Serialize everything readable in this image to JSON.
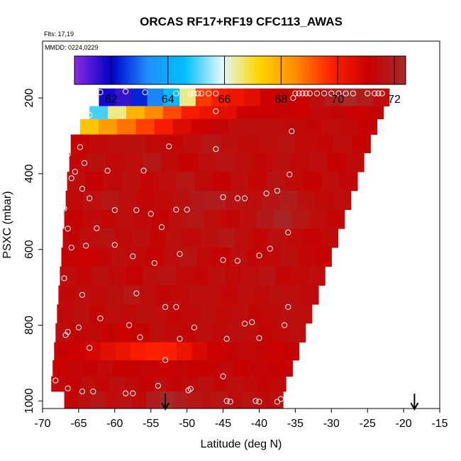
{
  "chart_data": {
    "type": "heatmap",
    "title": "ORCAS RF17+RF19 CFC113_AWAS",
    "flights_note": "Flts: 17,19",
    "date_note": "MMDD: 0224,0229",
    "xlabel": "Latitude (deg N)",
    "ylabel": "PSXC (mbar)",
    "xlim": [
      -70,
      -15
    ],
    "ylim": [
      1020,
      50
    ],
    "x_ticks": [
      -70,
      -65,
      -60,
      -55,
      -50,
      -45,
      -40,
      -35,
      -30,
      -25,
      -20,
      -15
    ],
    "y_ticks": [
      200,
      400,
      600,
      800,
      1000
    ],
    "colorbar": {
      "range": [
        60.7,
        72.4
      ],
      "ticks": [
        62,
        64,
        66,
        68,
        70,
        72
      ],
      "colors": [
        "#8a2be2",
        "#0000c8",
        "#1e90ff",
        "#00bfff",
        "#e0f8ff",
        "#ffd700",
        "#ff8c00",
        "#ff2000",
        "#c80000",
        "#a52a2a"
      ]
    },
    "layers": [
      {
        "pressure": 185,
        "lat_start": -62.2,
        "lat_end": -22.0,
        "values": [
          61.8,
          61.5,
          62.3,
          63.2,
          64.5,
          66.5,
          69.5,
          70.0,
          70.2,
          70.5,
          71.0,
          71.2,
          71.0,
          71.5,
          72.0,
          72.3,
          72.0,
          71.5
        ]
      },
      {
        "pressure": 205,
        "lat_start": -62.2,
        "lat_end": -22.0,
        "values": [
          61.8,
          61.5,
          62.3,
          63.2,
          64.5,
          66.5,
          69.5,
          70.0,
          70.2,
          70.5,
          71.0,
          71.2,
          71.0,
          71.5,
          72.0,
          72.3,
          72.0,
          71.5
        ]
      },
      {
        "pressure": 238,
        "lat_start": -63.5,
        "lat_end": -22.8,
        "values": [
          65.0,
          66.5,
          67.8,
          68.5,
          69.3,
          70.0,
          70.3,
          70.5,
          71.0,
          71.0,
          71.2,
          71.0,
          71.4,
          71.3,
          71.0,
          71.2
        ]
      },
      {
        "pressure": 273,
        "lat_start": -64.8,
        "lat_end": -23.7,
        "values": [
          67.5,
          68.2,
          68.8,
          69.4,
          70.0,
          70.6,
          71.0,
          71.3,
          71.5,
          71.6,
          71.5,
          71.4,
          71.3,
          71.5,
          71.4,
          71.2
        ]
      },
      {
        "pressure": 320,
        "lat_start": -66.1,
        "lat_end": -24.6,
        "values": [
          71.2,
          71.4,
          71.5,
          71.6,
          71.4,
          71.3,
          71.5,
          71.8,
          71.6,
          71.4,
          71.5,
          71.7,
          71.4,
          71.3,
          71.5,
          71.2
        ]
      },
      {
        "pressure": 370,
        "lat_start": -66.3,
        "lat_end": -25.5,
        "values": [
          71.3,
          71.6,
          71.4,
          71.5,
          71.8,
          71.4,
          71.2,
          71.5,
          71.7,
          71.5,
          71.3,
          71.6,
          71.4,
          71.5,
          71.2,
          71.4
        ]
      },
      {
        "pressure": 420,
        "lat_start": -66.6,
        "lat_end": -26.4,
        "values": [
          71.5,
          71.2,
          71.4,
          71.6,
          71.3,
          71.5,
          71.8,
          71.4,
          71.2,
          71.5,
          71.3,
          71.7,
          71.4,
          71.2,
          71.5,
          71.3
        ]
      },
      {
        "pressure": 470,
        "lat_start": -66.8,
        "lat_end": -27.3,
        "values": [
          71.4,
          71.6,
          71.8,
          71.5,
          71.3,
          71.4,
          71.6,
          71.9,
          72.0,
          71.7,
          71.5,
          71.8,
          72.0,
          71.6,
          71.4,
          71.5
        ]
      },
      {
        "pressure": 520,
        "lat_start": -67.0,
        "lat_end": -28.2,
        "values": [
          71.2,
          71.4,
          71.3,
          71.5,
          71.4,
          71.2,
          71.6,
          71.8,
          71.5,
          71.3,
          71.5,
          71.9,
          72.2,
          71.8,
          71.5,
          71.3
        ]
      },
      {
        "pressure": 570,
        "lat_start": -67.2,
        "lat_end": -29.1,
        "values": [
          71.3,
          71.5,
          71.7,
          71.4,
          71.6,
          71.3,
          71.5,
          71.4,
          71.6,
          71.8,
          71.5,
          71.3,
          71.6,
          71.4,
          71.2,
          71.4
        ]
      },
      {
        "pressure": 620,
        "lat_start": -67.4,
        "lat_end": -30.0,
        "values": [
          71.2,
          71.0,
          71.3,
          71.5,
          71.4,
          71.2,
          71.5,
          71.7,
          71.4,
          71.2,
          71.5,
          71.3,
          71.4,
          71.6,
          71.3,
          71.2
        ]
      },
      {
        "pressure": 670,
        "lat_start": -67.6,
        "lat_end": -30.9,
        "values": [
          71.5,
          71.3,
          71.6,
          71.4,
          71.2,
          71.5,
          71.7,
          71.4,
          71.3,
          71.6,
          71.4,
          71.5,
          71.7,
          71.3,
          71.4,
          71.5
        ]
      },
      {
        "pressure": 720,
        "lat_start": -67.8,
        "lat_end": -31.8,
        "values": [
          71.3,
          71.5,
          71.4,
          71.6,
          71.8,
          71.5,
          71.3,
          71.4,
          71.6,
          71.5,
          71.3,
          71.5,
          71.4,
          71.6,
          71.5,
          71.4
        ]
      },
      {
        "pressure": 770,
        "lat_start": -68.0,
        "lat_end": -32.7,
        "values": [
          71.4,
          71.6,
          71.3,
          71.5,
          71.4,
          71.6,
          71.5,
          71.3,
          71.4,
          71.6,
          71.4,
          71.5,
          71.3,
          71.4,
          71.6,
          71.5
        ]
      },
      {
        "pressure": 820,
        "lat_start": -68.2,
        "lat_end": -33.6,
        "values": [
          71.5,
          71.3,
          71.4,
          71.2,
          71.0,
          71.2,
          71.5,
          71.4,
          71.3,
          71.5,
          71.4,
          71.6,
          71.5,
          71.3,
          71.4,
          71.5
        ]
      },
      {
        "pressure": 870,
        "lat_start": -68.4,
        "lat_end": -34.5,
        "values": [
          71.2,
          71.0,
          70.8,
          70.5,
          70.3,
          70.0,
          69.8,
          69.9,
          70.3,
          70.7,
          71.0,
          71.2,
          71.4,
          71.3,
          71.0,
          71.2
        ]
      },
      {
        "pressure": 915,
        "lat_start": -68.6,
        "lat_end": -35.4,
        "values": [
          71.0,
          71.3,
          71.2,
          71.4,
          71.1,
          71.2,
          71.3,
          71.0,
          71.3,
          71.1,
          71.2,
          71.4,
          71.1,
          71.3,
          71.2,
          71.1
        ]
      },
      {
        "pressure": 955,
        "lat_start": -68.8,
        "lat_end": -36.3,
        "values": [
          71.4,
          71.2,
          71.5,
          71.3,
          71.6,
          71.4,
          71.2,
          71.5,
          71.3,
          71.4,
          71.6,
          71.3,
          71.5,
          71.4,
          71.2,
          71.4
        ]
      },
      {
        "pressure": 995,
        "lat_start": -67.0,
        "lat_end": -36.7,
        "values": [
          71.3,
          71.6,
          71.8,
          71.5,
          71.7,
          71.4,
          72.0,
          72.3,
          72.0,
          71.8,
          71.6,
          71.8,
          71.5,
          71.7,
          71.4,
          71.5
        ]
      }
    ],
    "samples": [
      [
        -62.0,
        185
      ],
      [
        -58.5,
        183
      ],
      [
        -55.8,
        185
      ],
      [
        -51.5,
        188
      ],
      [
        -49.5,
        188
      ],
      [
        -49.0,
        188
      ],
      [
        -48.5,
        188
      ],
      [
        -48.0,
        188
      ],
      [
        -47.0,
        188
      ],
      [
        -46.0,
        188
      ],
      [
        -35.0,
        188
      ],
      [
        -34.5,
        188
      ],
      [
        -34.0,
        188
      ],
      [
        -33.5,
        188
      ],
      [
        -33.0,
        188
      ],
      [
        -32.0,
        188
      ],
      [
        -31.0,
        188
      ],
      [
        -30.0,
        188
      ],
      [
        -29.0,
        188
      ],
      [
        -28.0,
        188
      ],
      [
        -27.0,
        188
      ],
      [
        -25.0,
        188
      ],
      [
        -24.0,
        188
      ],
      [
        -23.5,
        188
      ],
      [
        -23.0,
        188
      ],
      [
        -35.3,
        200
      ],
      [
        -63.5,
        245
      ],
      [
        -46.0,
        235
      ],
      [
        -35.5,
        288
      ],
      [
        -65.5,
        275
      ],
      [
        -64.8,
        330
      ],
      [
        -52.5,
        328
      ],
      [
        -46.0,
        335
      ],
      [
        -66.5,
        348
      ],
      [
        -64.2,
        372
      ],
      [
        -65.5,
        395
      ],
      [
        -61.0,
        392
      ],
      [
        -56.0,
        392
      ],
      [
        -66.0,
        412
      ],
      [
        -35.8,
        402
      ],
      [
        -64.5,
        440
      ],
      [
        -45.0,
        462
      ],
      [
        -43.0,
        465
      ],
      [
        -42.0,
        465
      ],
      [
        -39.0,
        452
      ],
      [
        -37.5,
        445
      ],
      [
        -67.0,
        492
      ],
      [
        -63.5,
        465
      ],
      [
        -60.0,
        496
      ],
      [
        -57.0,
        496
      ],
      [
        -55.0,
        506
      ],
      [
        -51.5,
        495
      ],
      [
        -50.0,
        495
      ],
      [
        -66.5,
        545
      ],
      [
        -62.5,
        544
      ],
      [
        -53.5,
        541
      ],
      [
        -36.0,
        555
      ],
      [
        -66.0,
        595
      ],
      [
        -64.0,
        590
      ],
      [
        -60.0,
        588
      ],
      [
        -57.5,
        618
      ],
      [
        -54.5,
        636
      ],
      [
        -51.0,
        612
      ],
      [
        -45.0,
        628
      ],
      [
        -43.0,
        630
      ],
      [
        -40.0,
        616
      ],
      [
        -38.5,
        598
      ],
      [
        -67.0,
        676
      ],
      [
        -64.5,
        720
      ],
      [
        -57.0,
        716
      ],
      [
        -53.0,
        752
      ],
      [
        -51.5,
        752
      ],
      [
        -36.0,
        752
      ],
      [
        -66.5,
        818
      ],
      [
        -65.0,
        806
      ],
      [
        -62.0,
        782
      ],
      [
        -58.0,
        800
      ],
      [
        -49.0,
        806
      ],
      [
        -42.0,
        796
      ],
      [
        -41.0,
        792
      ],
      [
        -36.5,
        800
      ],
      [
        -66.8,
        826
      ],
      [
        -63.5,
        860
      ],
      [
        -56.5,
        832
      ],
      [
        -51.0,
        836
      ],
      [
        -44.5,
        836
      ],
      [
        -40.0,
        834
      ],
      [
        -53.0,
        892
      ],
      [
        -68.2,
        946
      ],
      [
        -66.5,
        967
      ],
      [
        -64.5,
        975
      ],
      [
        -63.0,
        975
      ],
      [
        -58.5,
        980
      ],
      [
        -57.5,
        980
      ],
      [
        -54.0,
        960
      ],
      [
        -49.5,
        968
      ],
      [
        -49.8,
        972
      ],
      [
        -44.5,
        1000
      ],
      [
        -44.0,
        1002
      ],
      [
        -40.5,
        1000
      ],
      [
        -40.0,
        1002
      ],
      [
        -37.5,
        1002
      ],
      [
        -37.0,
        995
      ],
      [
        -45.0,
        935
      ]
    ],
    "arrows": [
      -53,
      -18.5
    ]
  }
}
